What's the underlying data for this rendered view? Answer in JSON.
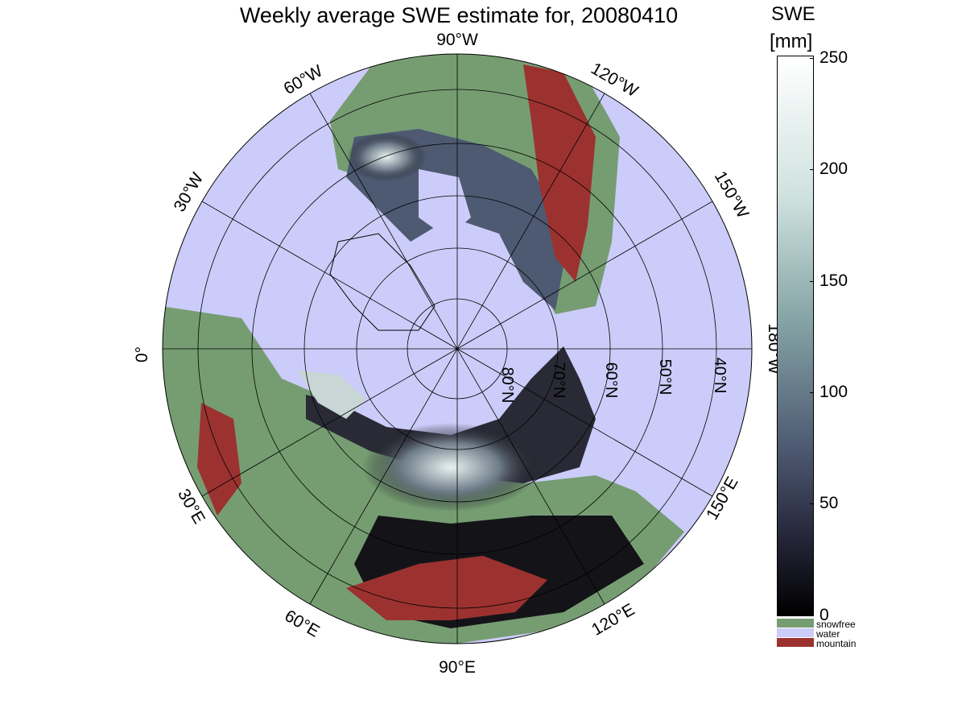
{
  "title": "Weekly average SWE estimate for, 20080410",
  "colorbar": {
    "unit_line1": "SWE",
    "unit_line2": "[mm]",
    "ticks": [
      "250",
      "200",
      "150",
      "100",
      "50",
      "0"
    ]
  },
  "legend": [
    {
      "label": "snowfree",
      "color": "#769d72"
    },
    {
      "label": "water",
      "color": "#ccccfa"
    },
    {
      "label": "mountain",
      "color": "#9c3230"
    }
  ],
  "map": {
    "longitude_labels": {
      "lon_90w": "90°W",
      "lon_60w": "60°W",
      "lon_30w": "30°W",
      "lon_0": "0°",
      "lon_120w": "120°W",
      "lon_150w": "150°W",
      "lon_180w": "180°W",
      "lon_150e": "150°E",
      "lon_120e": "120°E",
      "lon_90e": "90°E",
      "lon_60e": "60°E",
      "lon_30e": "30°E"
    },
    "latitude_labels": [
      "80°N",
      "70°N",
      "60°N",
      "50°N",
      "40°N"
    ],
    "colors": {
      "water": "#ccccfa",
      "land": "#769d72",
      "mountain": "#9c3230",
      "snow_dark": "#141418",
      "snow_light": "#e8f2f0"
    }
  }
}
